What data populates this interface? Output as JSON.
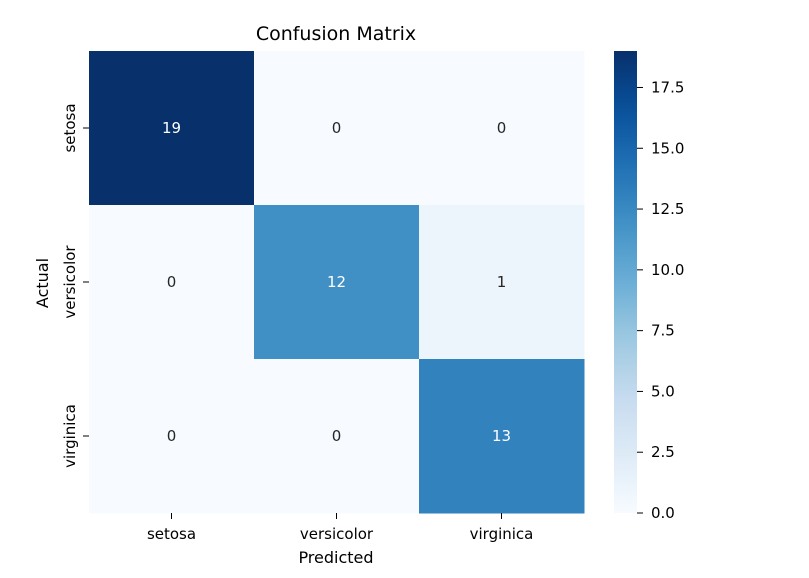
{
  "chart_data": {
    "type": "heatmap",
    "title": "Confusion Matrix",
    "xlabel": "Predicted",
    "ylabel": "Actual",
    "x_categories": [
      "setosa",
      "versicolor",
      "virginica"
    ],
    "y_categories": [
      "setosa",
      "versicolor",
      "virginica"
    ],
    "values": [
      [
        19,
        0,
        0
      ],
      [
        0,
        12,
        1
      ],
      [
        0,
        0,
        13
      ]
    ],
    "colormap": "Blues",
    "colorbar": {
      "range": [
        0,
        19
      ],
      "ticks": [
        0.0,
        2.5,
        5.0,
        7.5,
        10.0,
        12.5,
        15.0,
        17.5
      ],
      "tick_labels": [
        "0.0",
        "2.5",
        "5.0",
        "7.5",
        "10.0",
        "12.5",
        "15.0",
        "17.5"
      ]
    },
    "annotations": true,
    "colors": {
      "low": "#f7fbff",
      "high": "#08306b",
      "text_dark": "#262626",
      "text_light": "#ffffff"
    }
  }
}
